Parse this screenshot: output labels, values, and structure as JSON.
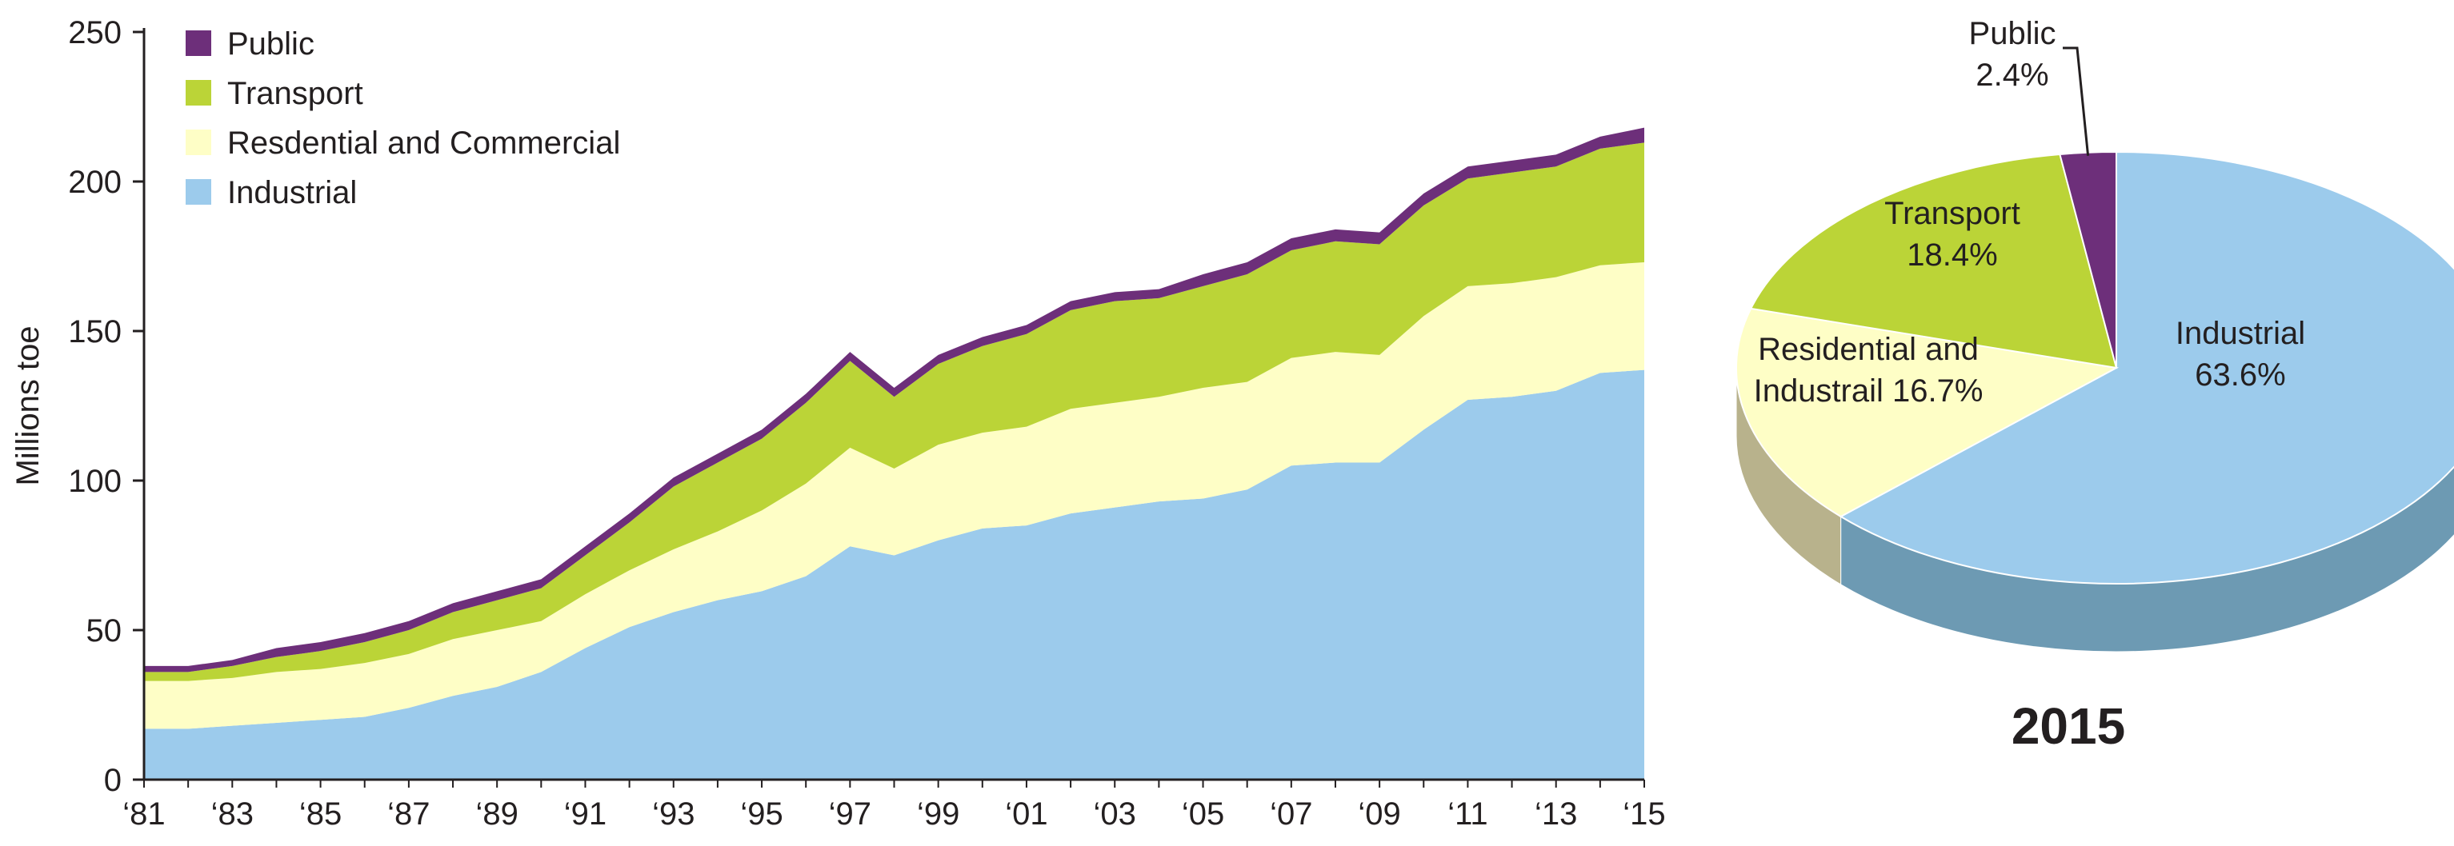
{
  "chart_data": [
    {
      "type": "area",
      "stacked": true,
      "ylabel": "Millions toe",
      "xlabel": "",
      "ylim": [
        0,
        250
      ],
      "yticks": [
        0,
        50,
        100,
        150,
        200,
        250
      ],
      "xtick_labels": [
        "‘81",
        "‘83",
        "‘85",
        "‘87",
        "‘89",
        "‘91",
        "‘93",
        "‘95",
        "‘97",
        "‘99",
        "‘01",
        "‘03",
        "‘05",
        "‘07",
        "‘09",
        "‘11",
        "‘13",
        "‘15"
      ],
      "x": [
        1981,
        1982,
        1983,
        1984,
        1985,
        1986,
        1987,
        1988,
        1989,
        1990,
        1991,
        1992,
        1993,
        1994,
        1995,
        1996,
        1997,
        1998,
        1999,
        2000,
        2001,
        2002,
        2003,
        2004,
        2005,
        2006,
        2007,
        2008,
        2009,
        2010,
        2011,
        2012,
        2013,
        2014,
        2015
      ],
      "legend_position": "top-left",
      "series": [
        {
          "name": "Industrial",
          "color": "#9ccbec",
          "values": [
            17,
            17,
            18,
            19,
            20,
            21,
            24,
            28,
            31,
            36,
            44,
            51,
            56,
            60,
            63,
            68,
            78,
            75,
            80,
            84,
            85,
            89,
            91,
            93,
            94,
            97,
            105,
            106,
            106,
            117,
            127,
            128,
            130,
            136,
            137
          ]
        },
        {
          "name": "Resdential and Commercial",
          "color": "#fefec6",
          "values": [
            16,
            16,
            16,
            17,
            17,
            18,
            18,
            19,
            19,
            17,
            18,
            19,
            21,
            23,
            27,
            31,
            33,
            29,
            32,
            32,
            33,
            35,
            35,
            35,
            37,
            36,
            36,
            37,
            36,
            38,
            38,
            38,
            38,
            36,
            36
          ]
        },
        {
          "name": "Transport",
          "color": "#bbd437",
          "values": [
            3,
            3,
            4,
            5,
            6,
            7,
            8,
            9,
            10,
            11,
            13,
            16,
            21,
            23,
            24,
            27,
            29,
            24,
            27,
            29,
            31,
            33,
            34,
            33,
            34,
            36,
            36,
            37,
            37,
            37,
            36,
            37,
            37,
            39,
            40
          ]
        },
        {
          "name": "Public",
          "color": "#6d2f7a",
          "values": [
            2,
            2,
            2,
            3,
            3,
            3,
            3,
            3,
            3,
            3,
            3,
            3,
            3,
            3,
            3,
            3,
            3,
            3,
            3,
            3,
            3,
            3,
            3,
            3,
            4,
            4,
            4,
            4,
            4,
            4,
            4,
            4,
            4,
            4,
            5
          ]
        }
      ],
      "legend": [
        "Public",
        "Transport",
        "Resdential and Commercial",
        "Industrial"
      ]
    },
    {
      "type": "pie",
      "title": "2015",
      "slices": [
        {
          "name": "Industrial",
          "label_line1": "Industrial",
          "label_line2": "63.6%",
          "value": 63.6,
          "color": "#9ccbec",
          "side_color": "#6d9ab3"
        },
        {
          "name": "Residential and Industrail",
          "label_line1": "Residential and",
          "label_line2": "Industrail 16.7%",
          "value": 16.7,
          "color": "#fefec6",
          "side_color": "#b8b28c"
        },
        {
          "name": "Transport",
          "label_line1": "Transport",
          "label_line2": "18.4%",
          "value": 18.4,
          "color": "#bbd437",
          "side_color": "#8aa02a"
        },
        {
          "name": "Public",
          "label_line1": "Public",
          "label_line2": "2.4%",
          "value": 2.4,
          "color": "#6d2f7a",
          "side_color": "#4a1f53"
        }
      ]
    }
  ]
}
